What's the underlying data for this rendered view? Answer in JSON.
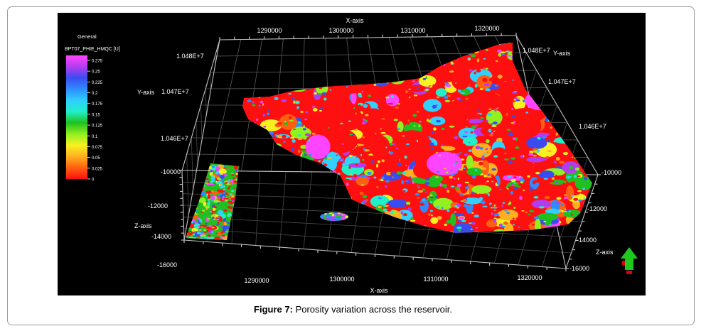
{
  "legend": {
    "group": "General",
    "property": "BPT07_PHIE_HMQC [U]",
    "ticks": [
      "0.275",
      "0.25",
      "0.225",
      "0.2",
      "0.175",
      "0.15",
      "0.125",
      "0.1",
      "0.075",
      "0.05",
      "0.025",
      "0"
    ],
    "colors": [
      "#ff44ff",
      "#b43cf0",
      "#3a4cf0",
      "#2e8cff",
      "#30d0ff",
      "#20f0c8",
      "#20c020",
      "#90f020",
      "#f8f020",
      "#ffb020",
      "#ff6010",
      "#ff1010"
    ]
  },
  "axes": {
    "x_title_top": "X-axis",
    "x_title_bottom": "X-axis",
    "y_title_left": "Y-axis",
    "y_title_right": "Y-axis",
    "z_title_left": "Z-axis",
    "z_title_right": "Z-axis",
    "x_ticks_top": [
      "1290000",
      "1300000",
      "1310000",
      "1320000"
    ],
    "x_ticks_bottom": [
      "1290000",
      "1300000",
      "1310000",
      "1320000"
    ],
    "y_ticks_left": [
      "1.048E+7",
      "1.047E+7",
      "1.046E+7"
    ],
    "y_ticks_right": [
      "1.048E+7",
      "1.047E+7",
      "1.046E+7"
    ],
    "z_ticks_left": [
      "-10000",
      "-12000",
      "-14000",
      "-16000"
    ],
    "z_ticks_right": [
      "-10000",
      "-12000",
      "-14000",
      "-16000"
    ]
  },
  "compass": {
    "icon": "north-arrow-icon",
    "color": "#1ec81e"
  },
  "caption": {
    "label": "Figure 7:",
    "text": " Porosity variation across the reservoir."
  }
}
